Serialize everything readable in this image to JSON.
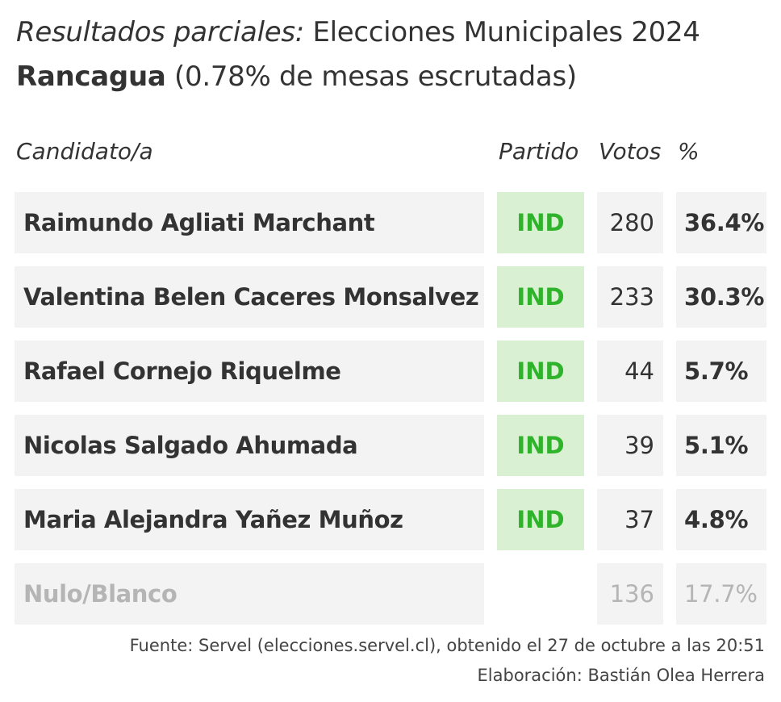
{
  "header": {
    "title_italic": "Resultados parciales:",
    "title_rest": " Elecciones Municipales 2024",
    "subtitle_bold": "Rancagua",
    "subtitle_rest": " (0.78% de mesas escrutadas)"
  },
  "columns": {
    "candidate": "Candidato/a",
    "party": "Partido",
    "votes": "Votos",
    "percent": "%"
  },
  "colors": {
    "party_bg": "#d9f0d3",
    "party_text": "#2fb32a",
    "row_bg": "#f3f3f3",
    "muted_text": "#b5b5b5"
  },
  "chart_data": {
    "type": "table",
    "columns": [
      "Candidato/a",
      "Partido",
      "Votos",
      "%"
    ],
    "rows": [
      {
        "name": "Raimundo Agliati Marchant",
        "party": "IND",
        "votes": "280",
        "percent": "36.4%"
      },
      {
        "name": "Valentina Belen Caceres Monsalvez",
        "party": "IND",
        "votes": "233",
        "percent": "30.3%"
      },
      {
        "name": "Rafael Cornejo Riquelme",
        "party": "IND",
        "votes": "44",
        "percent": "5.7%"
      },
      {
        "name": "Nicolas Salgado Ahumada",
        "party": "IND",
        "votes": "39",
        "percent": "5.1%"
      },
      {
        "name": "Maria Alejandra Yañez Muñoz",
        "party": "IND",
        "votes": "37",
        "percent": "4.8%"
      },
      {
        "name": "Nulo/Blanco",
        "party": "",
        "votes": "136",
        "percent": "17.7%"
      }
    ]
  },
  "footer": {
    "source": "Fuente: Servel (elecciones.servel.cl), obtenido el 27 de octubre a las 20:51",
    "credit": "Elaboración: Bastián Olea Herrera"
  }
}
